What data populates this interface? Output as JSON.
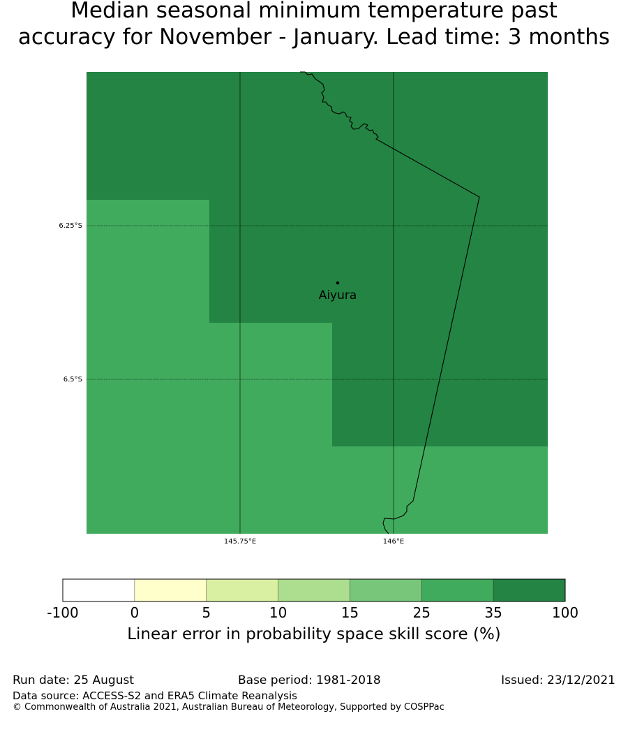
{
  "title": {
    "line1": "Median seasonal minimum temperature past",
    "line2": "accuracy for November - January. Lead time: 3 months"
  },
  "map": {
    "place_label": "Aiyura",
    "lon_labels": [
      "145.75°E",
      "146°E"
    ],
    "lat_labels": [
      "6.25°S",
      "6.5°S"
    ]
  },
  "colorbar": {
    "label": "Linear error in probability space skill score (%)",
    "ticks": [
      "-100",
      "0",
      "5",
      "10",
      "15",
      "25",
      "35",
      "100"
    ],
    "colors": [
      "#ffffff",
      "#ffffcc",
      "#d9f0a3",
      "#addd8e",
      "#78c679",
      "#41ab5d",
      "#238443"
    ]
  },
  "footer": {
    "run_date": "Run date: 25 August",
    "base_period": "Base period: 1981-2018",
    "issued": "Issued: 23/12/2021",
    "data_source": "Data source: ACCESS-S2 and ERA5 Climate Reanalysis",
    "copyright": "© Commonwealth of Australia 2021, Australian Bureau of Meteorology, Supported by COSPPac"
  }
}
